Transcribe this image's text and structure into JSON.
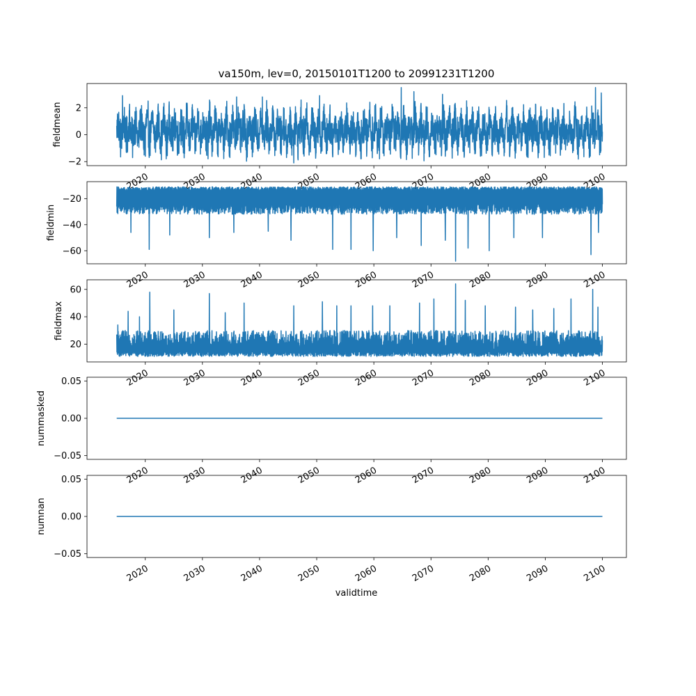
{
  "figure": {
    "title": "va150m, lev=0, 20150101T1200 to 20991231T1200",
    "xlabel": "validtime"
  },
  "chart_data": [
    {
      "type": "line",
      "ylabel": "fieldmean",
      "x_range": [
        "2015-01-01",
        "2099-12-31"
      ],
      "xlim": [
        2009.8,
        2104.2
      ],
      "ylim": [
        -2.3,
        3.8
      ],
      "yticks": [
        -2,
        0,
        2
      ],
      "ytick_labels": [
        "−2",
        "0",
        "2"
      ],
      "xticks": [
        2020,
        2030,
        2040,
        2050,
        2060,
        2070,
        2080,
        2090,
        2100
      ],
      "xtick_labels": [
        "2020",
        "2030",
        "2040",
        "2050",
        "2060",
        "2070",
        "2080",
        "2090",
        "2100"
      ],
      "color": "#1f77b4",
      "series": [
        {
          "typical_low": -1.2,
          "typical_high": 2.0,
          "min": -2.1,
          "max": 3.5,
          "baseline": 0.3,
          "peaks": [
            [
              2016.0,
              2.9
            ],
            [
              2020.5,
              2.5
            ],
            [
              2036.0,
              2.8
            ],
            [
              2040.5,
              2.8
            ],
            [
              2050.5,
              2.9
            ],
            [
              2064.8,
              3.5
            ],
            [
              2067.0,
              3.2
            ],
            [
              2072.0,
              3.0
            ],
            [
              2098.8,
              3.5
            ],
            [
              2099.8,
              3.1
            ]
          ],
          "dips": [
            [
              2020.0,
              -1.6
            ],
            [
              2031.0,
              -1.8
            ],
            [
              2046.0,
              -2.1
            ],
            [
              2061.0,
              -1.8
            ],
            [
              2072.5,
              -1.6
            ],
            [
              2087.0,
              -1.7
            ],
            [
              2099.5,
              -1.5
            ]
          ]
        }
      ]
    },
    {
      "type": "line",
      "ylabel": "fieldmin",
      "x_range": [
        "2015-01-01",
        "2099-12-31"
      ],
      "xlim": [
        2009.8,
        2104.2
      ],
      "ylim": [
        -70,
        -7
      ],
      "yticks": [
        -60,
        -40,
        -20
      ],
      "ytick_labels": [
        "−60",
        "−40",
        "−20"
      ],
      "xticks": [
        2020,
        2030,
        2040,
        2050,
        2060,
        2070,
        2080,
        2090,
        2100
      ],
      "xtick_labels": [
        "2020",
        "2030",
        "2040",
        "2050",
        "2060",
        "2070",
        "2080",
        "2090",
        "2100"
      ],
      "color": "#1f77b4",
      "series": [
        {
          "typical_low": -32,
          "typical_high": -11,
          "min": -68,
          "max": -10,
          "baseline": -20,
          "peaks": [],
          "dips": [
            [
              2020.7,
              -59
            ],
            [
              2017.5,
              -46
            ],
            [
              2024.3,
              -48
            ],
            [
              2031.2,
              -50
            ],
            [
              2035.5,
              -46
            ],
            [
              2041.5,
              -45
            ],
            [
              2045.5,
              -52
            ],
            [
              2052.8,
              -59
            ],
            [
              2056.0,
              -59
            ],
            [
              2059.9,
              -60
            ],
            [
              2064.0,
              -50
            ],
            [
              2068.3,
              -56
            ],
            [
              2072.5,
              -52
            ],
            [
              2074.3,
              -68
            ],
            [
              2076.5,
              -58
            ],
            [
              2080.2,
              -60
            ],
            [
              2084.5,
              -50
            ],
            [
              2089.5,
              -50
            ],
            [
              2098.0,
              -63
            ],
            [
              2099.3,
              -46
            ]
          ]
        }
      ]
    },
    {
      "type": "line",
      "ylabel": "fieldmax",
      "x_range": [
        "2015-01-01",
        "2099-12-31"
      ],
      "xlim": [
        2009.8,
        2104.2
      ],
      "ylim": [
        7,
        67
      ],
      "yticks": [
        20,
        40,
        60
      ],
      "ytick_labels": [
        "20",
        "40",
        "60"
      ],
      "xticks": [
        2020,
        2030,
        2040,
        2050,
        2060,
        2070,
        2080,
        2090,
        2100
      ],
      "xtick_labels": [
        "2020",
        "2030",
        "2040",
        "2050",
        "2060",
        "2070",
        "2080",
        "2090",
        "2100"
      ],
      "color": "#1f77b4",
      "series": [
        {
          "typical_low": 11,
          "typical_high": 30,
          "min": 9,
          "max": 64,
          "baseline": 16,
          "peaks": [
            [
              2015.2,
              34
            ],
            [
              2017.0,
              44
            ],
            [
              2019.0,
              40
            ],
            [
              2020.8,
              58
            ],
            [
              2025.0,
              45
            ],
            [
              2031.2,
              57
            ],
            [
              2034.0,
              43
            ],
            [
              2037.3,
              50
            ],
            [
              2046.0,
              48
            ],
            [
              2051.0,
              51
            ],
            [
              2053.5,
              48
            ],
            [
              2056.0,
              48
            ],
            [
              2059.8,
              48
            ],
            [
              2062.8,
              48
            ],
            [
              2068.0,
              50
            ],
            [
              2070.5,
              53
            ],
            [
              2074.3,
              64
            ],
            [
              2076.0,
              52
            ],
            [
              2079.5,
              48
            ],
            [
              2084.8,
              47
            ],
            [
              2087.8,
              45
            ],
            [
              2091.5,
              46
            ],
            [
              2094.5,
              53
            ],
            [
              2098.3,
              60
            ],
            [
              2099.2,
              47
            ]
          ],
          "dips": []
        }
      ]
    },
    {
      "type": "line",
      "ylabel": "nummasked",
      "x_range": [
        "2015-01-01",
        "2099-12-31"
      ],
      "xlim": [
        2009.8,
        2104.2
      ],
      "ylim": [
        -0.055,
        0.055
      ],
      "yticks": [
        -0.05,
        0.0,
        0.05
      ],
      "ytick_labels": [
        "−0.05",
        "0.00",
        "0.05"
      ],
      "xticks": [
        2020,
        2030,
        2040,
        2050,
        2060,
        2070,
        2080,
        2090,
        2100
      ],
      "xtick_labels": [
        "2020",
        "2030",
        "2040",
        "2050",
        "2060",
        "2070",
        "2080",
        "2090",
        "2100"
      ],
      "color": "#1f77b4",
      "series": [
        {
          "constant": 0.0
        }
      ]
    },
    {
      "type": "line",
      "ylabel": "numnan",
      "x_range": [
        "2015-01-01",
        "2099-12-31"
      ],
      "xlim": [
        2009.8,
        2104.2
      ],
      "ylim": [
        -0.055,
        0.055
      ],
      "yticks": [
        -0.05,
        0.0,
        0.05
      ],
      "ytick_labels": [
        "−0.05",
        "0.00",
        "0.05"
      ],
      "xticks": [
        2020,
        2030,
        2040,
        2050,
        2060,
        2070,
        2080,
        2090,
        2100
      ],
      "xtick_labels": [
        "2020",
        "2030",
        "2040",
        "2050",
        "2060",
        "2070",
        "2080",
        "2090",
        "2100"
      ],
      "color": "#1f77b4",
      "series": [
        {
          "constant": 0.0
        }
      ]
    }
  ]
}
